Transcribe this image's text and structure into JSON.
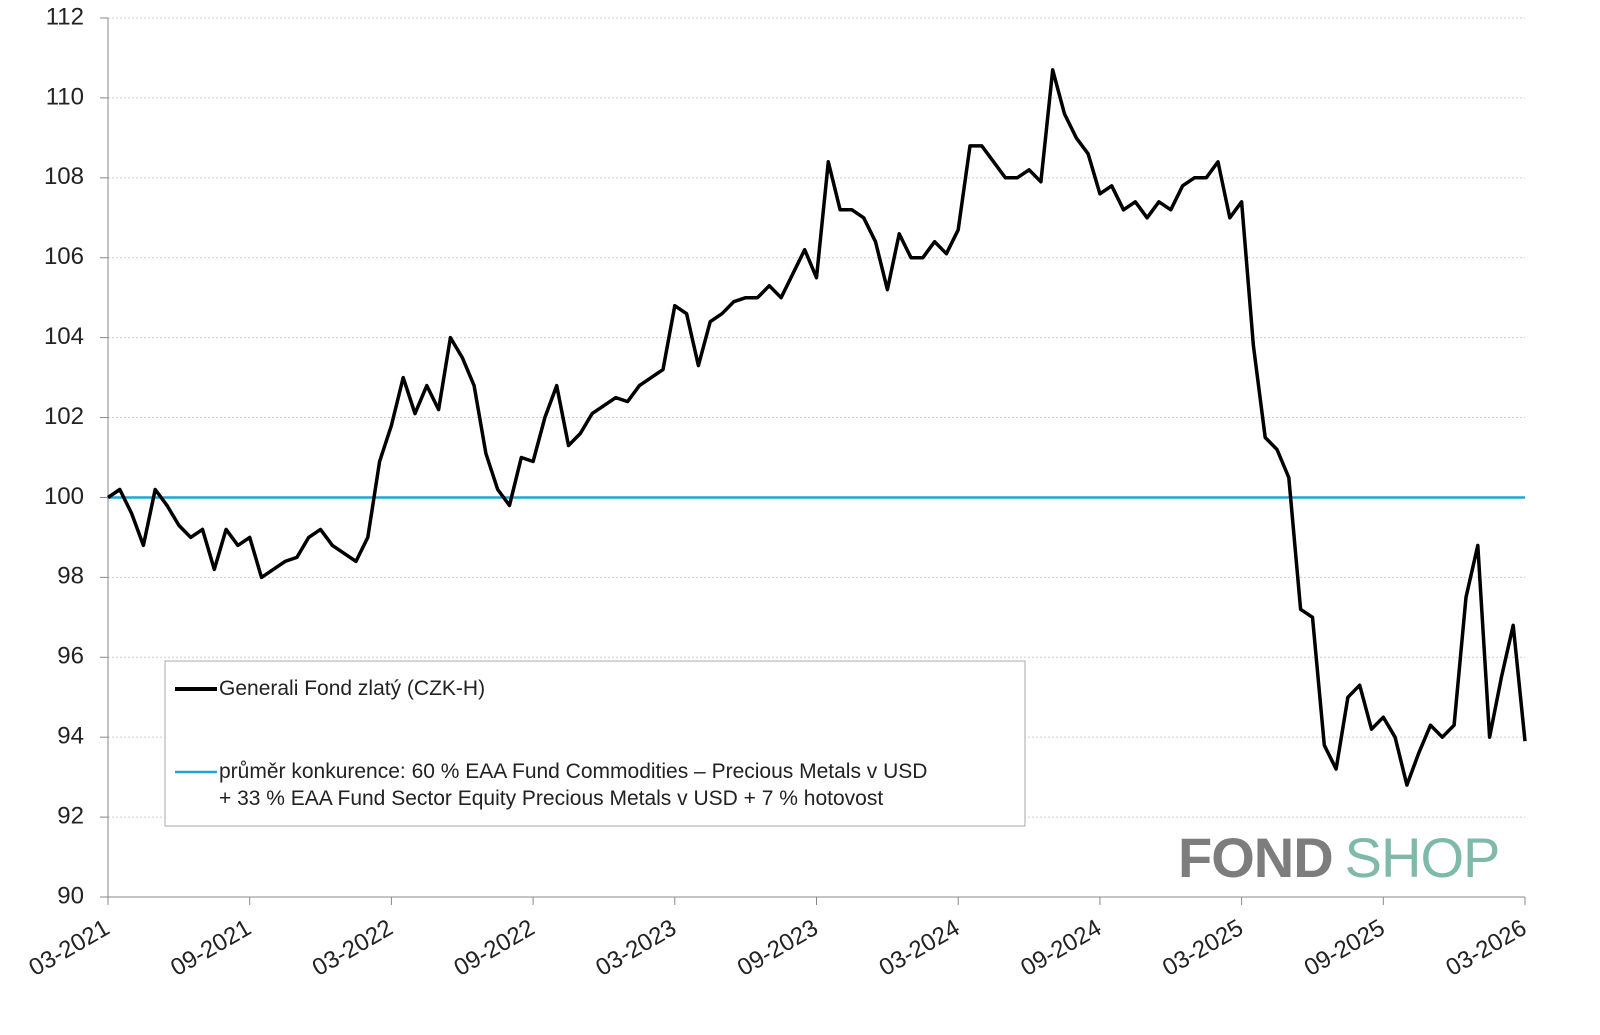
{
  "chart_data": {
    "type": "line",
    "categories": [
      "03-2021",
      null,
      null,
      null,
      null,
      null,
      null,
      null,
      null,
      null,
      null,
      null,
      "09-2021",
      null,
      null,
      null,
      null,
      null,
      null,
      null,
      null,
      null,
      null,
      null,
      "03-2022",
      null,
      null,
      null,
      null,
      null,
      null,
      null,
      null,
      null,
      null,
      null,
      "09-2022",
      null,
      null,
      null,
      null,
      null,
      null,
      null,
      null,
      null,
      null,
      null,
      "03-2023",
      null,
      null,
      null,
      null,
      null,
      null,
      null,
      null,
      null,
      null,
      null,
      "09-2023",
      null,
      null,
      null,
      null,
      null,
      null,
      null,
      null,
      null,
      null,
      null,
      "03-2024",
      null,
      null,
      null,
      null,
      null,
      null,
      null,
      null,
      null,
      null,
      null,
      "09-2024",
      null,
      null,
      null,
      null,
      null,
      null,
      null,
      null,
      null,
      null,
      null,
      "03-2025",
      null,
      null,
      null,
      null,
      null,
      null,
      null,
      null,
      null,
      null,
      null,
      "09-2025",
      null,
      null,
      null,
      null,
      null,
      null,
      null,
      null,
      null,
      null,
      null,
      "03-2026"
    ],
    "series": [
      {
        "name": "Generali Fond zlatý (CZK-H)",
        "color": "#000000",
        "values": [
          100.0,
          100.2,
          99.6,
          98.8,
          100.2,
          99.8,
          99.3,
          99.0,
          99.2,
          98.2,
          99.2,
          98.8,
          99.0,
          98.0,
          98.2,
          98.4,
          98.5,
          99.0,
          99.2,
          98.8,
          98.6,
          98.4,
          99.0,
          100.9,
          101.8,
          103.0,
          102.1,
          102.8,
          102.2,
          104.0,
          103.5,
          102.8,
          101.1,
          100.2,
          99.8,
          101.0,
          100.9,
          102.0,
          102.8,
          101.3,
          101.6,
          102.1,
          102.3,
          102.5,
          102.4,
          102.8,
          103.0,
          103.2,
          104.8,
          104.6,
          103.3,
          104.4,
          104.6,
          104.9,
          105.0,
          105.0,
          105.3,
          105.0,
          105.6,
          106.2,
          105.5,
          108.4,
          107.2,
          107.2,
          107.0,
          106.4,
          105.2,
          106.6,
          106.0,
          106.0,
          106.4,
          106.1,
          106.7,
          108.8,
          108.8,
          108.4,
          108.0,
          108.0,
          108.2,
          107.9,
          110.7,
          109.6,
          109.0,
          108.6,
          107.6,
          107.8,
          107.2,
          107.4,
          107.0,
          107.4,
          107.2,
          107.8,
          108.0,
          108.0,
          108.4,
          107.0,
          107.4,
          103.8,
          101.5,
          101.2,
          100.5,
          97.2,
          97.0,
          93.8,
          93.2,
          95.0,
          95.3,
          94.2,
          94.5,
          94.0,
          92.8,
          93.6,
          94.3,
          94.0,
          94.3,
          97.5,
          98.8,
          94.0,
          95.5,
          96.8,
          93.9
        ]
      },
      {
        "name": "průměr konkurence: 60 % EAA Fund Commodities – Precious Metals v USD\n+ 33 % EAA Fund Sector Equity Precious Metals v USD + 7 % hotovost",
        "color": "#1fa5d8",
        "values": [
          100,
          100,
          100,
          100,
          100,
          100,
          100,
          100,
          100,
          100,
          100,
          100,
          100,
          100,
          100,
          100,
          100,
          100,
          100,
          100,
          100,
          100,
          100,
          100,
          100,
          100,
          100,
          100,
          100,
          100,
          100,
          100,
          100,
          100,
          100,
          100,
          100,
          100,
          100,
          100,
          100,
          100,
          100,
          100,
          100,
          100,
          100,
          100,
          100,
          100,
          100,
          100,
          100,
          100,
          100,
          100,
          100,
          100,
          100,
          100,
          100,
          100,
          100,
          100,
          100,
          100,
          100,
          100,
          100,
          100,
          100,
          100,
          100,
          100,
          100,
          100,
          100,
          100,
          100,
          100,
          100,
          100,
          100,
          100,
          100,
          100,
          100,
          100,
          100,
          100,
          100,
          100,
          100,
          100,
          100,
          100,
          100,
          100,
          100,
          100,
          100,
          100,
          100,
          100,
          100,
          100,
          100,
          100,
          100,
          100,
          100,
          100,
          100,
          100,
          100,
          100,
          100,
          100,
          100,
          100,
          100
        ]
      }
    ],
    "ylim": [
      90,
      112
    ],
    "yticks": [
      90,
      92,
      94,
      96,
      98,
      100,
      102,
      104,
      106,
      108,
      110,
      112
    ],
    "grid": true,
    "legend": "bottom-left",
    "logo": {
      "left": "FOND",
      "right": "SHOP",
      "left_color": "#7d7d7d",
      "right_color": "#7fb9a9"
    }
  }
}
